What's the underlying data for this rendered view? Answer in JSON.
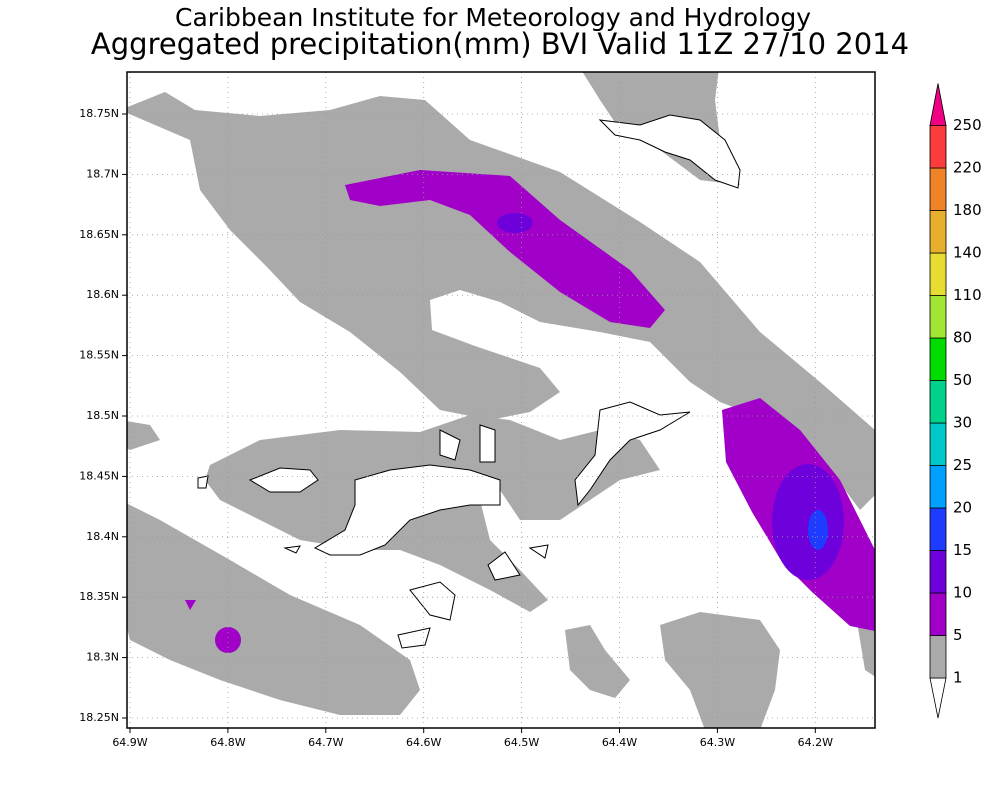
{
  "title": {
    "line1": "Caribbean Institute for Meteorology and Hydrology",
    "line2": "Aggregated precipitation(mm) BVI Valid 11Z 27/10 2014"
  },
  "map": {
    "lat_ticks": [
      "18.75N",
      "18.7N",
      "18.65N",
      "18.6N",
      "18.55N",
      "18.5N",
      "18.45N",
      "18.4N",
      "18.35N",
      "18.3N",
      "18.25N"
    ],
    "lon_ticks": [
      "64.9W",
      "64.8W",
      "64.7W",
      "64.6W",
      "64.5W",
      "64.4W",
      "64.3W",
      "64.2W"
    ]
  },
  "colorbar": {
    "labels": [
      "1",
      "5",
      "10",
      "15",
      "20",
      "25",
      "30",
      "50",
      "80",
      "110",
      "140",
      "180",
      "220",
      "250"
    ],
    "colors": [
      "#ffffff",
      "#aaaaaa",
      "#a000c8",
      "#6e00dc",
      "#1e3cff",
      "#00a0ff",
      "#00c8c8",
      "#00d28c",
      "#00dc00",
      "#a0e632",
      "#e6dc32",
      "#e6af2d",
      "#f08228",
      "#fa3c3c",
      "#f00082"
    ]
  }
}
